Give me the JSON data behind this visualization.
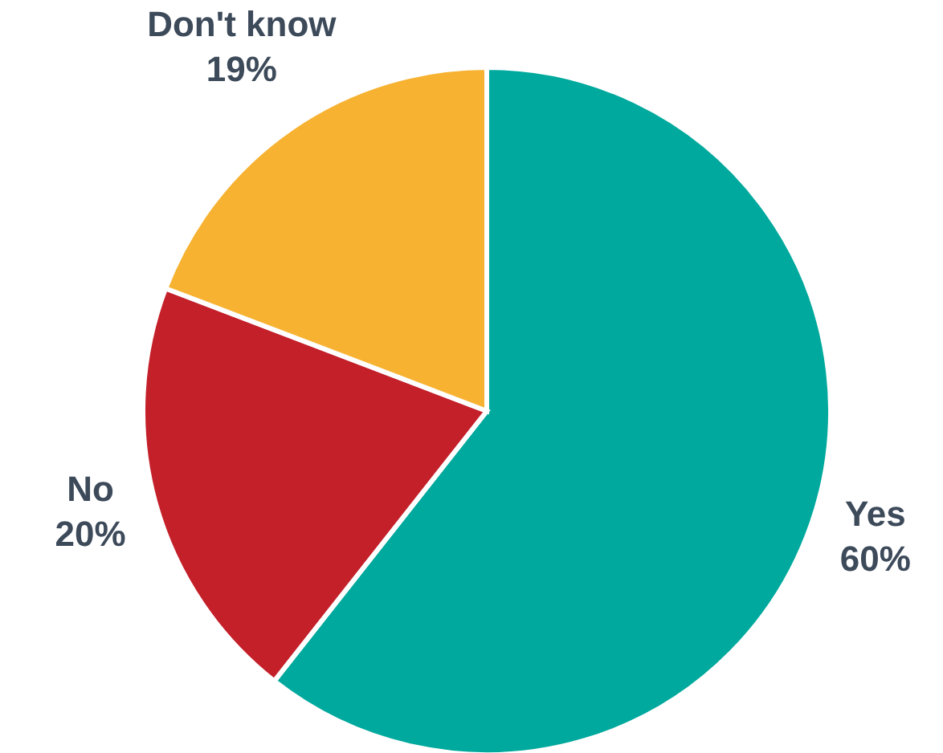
{
  "chart_data": {
    "type": "pie",
    "categories": [
      "Yes",
      "No",
      "Don't know"
    ],
    "values": [
      60,
      20,
      19
    ],
    "value_labels": [
      "60%",
      "20%",
      "19%"
    ],
    "colors": [
      "#00a99d",
      "#c4202a",
      "#f7b231"
    ],
    "legend": false
  }
}
